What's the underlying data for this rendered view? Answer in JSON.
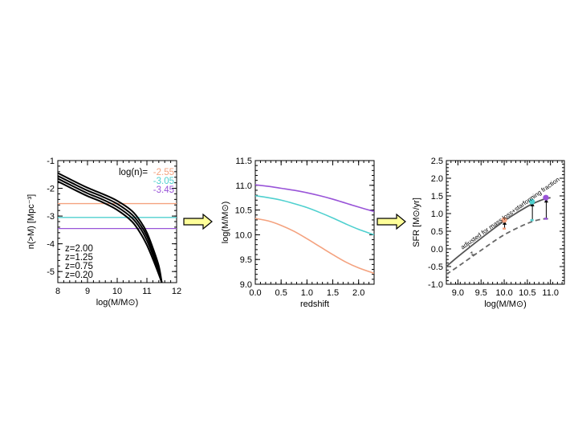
{
  "chart_data": [
    {
      "type": "line",
      "xlabel": "log(M/M⊙)",
      "ylabel": "n(>M) [Mpc⁻³]",
      "xlim": [
        8,
        12
      ],
      "ylim": [
        -5.4,
        -1
      ],
      "xticks": [
        "8",
        "9",
        "10",
        "11",
        "12"
      ],
      "yticks": [
        "-1",
        "-2",
        "-3",
        "-4",
        "-5"
      ],
      "legend_title": "log(n)=",
      "thresholds": [
        {
          "label": "-2.55",
          "value": -2.55,
          "color": "#f4a27f"
        },
        {
          "label": "-3.05",
          "value": -3.05,
          "color": "#4fd0cf"
        },
        {
          "label": "-3.45",
          "value": -3.45,
          "color": "#9954d8"
        }
      ],
      "series_labels": [
        "z=2.00",
        "z=1.25",
        "z=0.75",
        "z=0.20"
      ],
      "series": [
        {
          "name": "z=2.00",
          "x": [
            8.0,
            8.5,
            9.0,
            9.5,
            10.0,
            10.5,
            10.8,
            11.0,
            11.2,
            11.4,
            11.5
          ],
          "y": [
            -1.75,
            -2.02,
            -2.28,
            -2.5,
            -2.78,
            -3.2,
            -3.65,
            -4.05,
            -4.55,
            -5.1,
            -5.4
          ]
        },
        {
          "name": "z=1.25",
          "x": [
            8.0,
            8.5,
            9.0,
            9.5,
            10.0,
            10.5,
            10.8,
            11.0,
            11.2,
            11.4,
            11.5
          ],
          "y": [
            -1.65,
            -1.92,
            -2.18,
            -2.4,
            -2.67,
            -3.07,
            -3.48,
            -3.88,
            -4.4,
            -5.0,
            -5.4
          ]
        },
        {
          "name": "z=0.75",
          "x": [
            8.0,
            8.5,
            9.0,
            9.5,
            10.0,
            10.5,
            10.8,
            11.0,
            11.2,
            11.4,
            11.5
          ],
          "y": [
            -1.55,
            -1.82,
            -2.08,
            -2.3,
            -2.56,
            -2.95,
            -3.35,
            -3.73,
            -4.27,
            -4.9,
            -5.4
          ]
        },
        {
          "name": "z=0.20",
          "x": [
            8.0,
            8.5,
            9.0,
            9.5,
            10.0,
            10.5,
            10.8,
            11.0,
            11.2,
            11.4,
            11.5
          ],
          "y": [
            -1.45,
            -1.72,
            -1.98,
            -2.2,
            -2.45,
            -2.82,
            -3.22,
            -3.6,
            -4.15,
            -4.8,
            -5.4
          ]
        }
      ]
    },
    {
      "type": "line",
      "xlabel": "redshift",
      "ylabel": "log(M/M⊙)",
      "xlim": [
        0,
        2.3
      ],
      "ylim": [
        9,
        11.5
      ],
      "xticks": [
        "0.0",
        "0.5",
        "1.0",
        "1.5",
        "2.0"
      ],
      "yticks": [
        "9.0",
        "9.5",
        "10.0",
        "10.5",
        "11.0",
        "11.5"
      ],
      "series": [
        {
          "color": "#9954d8",
          "x": [
            0.0,
            0.25,
            0.5,
            0.75,
            1.0,
            1.25,
            1.5,
            1.75,
            2.0,
            2.3
          ],
          "y": [
            11.01,
            10.98,
            10.94,
            10.9,
            10.85,
            10.79,
            10.72,
            10.64,
            10.56,
            10.47
          ]
        },
        {
          "color": "#4fd0cf",
          "x": [
            0.0,
            0.25,
            0.5,
            0.75,
            1.0,
            1.25,
            1.5,
            1.75,
            2.0,
            2.3
          ],
          "y": [
            10.79,
            10.75,
            10.7,
            10.63,
            10.55,
            10.45,
            10.34,
            10.22,
            10.11,
            10.0
          ]
        },
        {
          "color": "#f4a27f",
          "x": [
            0.0,
            0.25,
            0.5,
            0.75,
            1.0,
            1.25,
            1.5,
            1.75,
            2.0,
            2.3
          ],
          "y": [
            10.33,
            10.28,
            10.19,
            10.07,
            9.92,
            9.76,
            9.6,
            9.45,
            9.33,
            9.22
          ]
        }
      ]
    },
    {
      "type": "line",
      "xlabel": "log(M/M⊙)",
      "ylabel": "SFR [M⊙/yr]",
      "xlim": [
        8.75,
        11.3
      ],
      "ylim": [
        -1.0,
        2.5
      ],
      "xticks": [
        "9.0",
        "9.5",
        "10.0",
        "10.5",
        "11.0"
      ],
      "yticks": [
        "-1.0",
        "-0.5",
        "0.0",
        "0.5",
        "1.0",
        "1.5",
        "2.0",
        "2.5"
      ],
      "annotation_main": "adjusted for mass loss+starforming fraction",
      "annotation_lower": "z",
      "series": [
        {
          "style": "solid",
          "x": [
            8.75,
            9.0,
            9.5,
            10.0,
            10.5,
            10.8,
            11.0
          ],
          "y": [
            -0.5,
            -0.22,
            0.3,
            0.79,
            1.2,
            1.38,
            1.45
          ]
        },
        {
          "style": "dashed",
          "x": [
            8.75,
            9.0,
            9.5,
            10.0,
            10.5,
            10.8,
            11.0
          ],
          "y": [
            -0.72,
            -0.5,
            -0.04,
            0.4,
            0.72,
            0.84,
            0.85
          ]
        }
      ],
      "points": [
        {
          "x": 10.0,
          "y_upper": 0.82,
          "y_lower": 0.58,
          "color": "#f4a27f"
        },
        {
          "x": 10.6,
          "y_upper": 1.34,
          "y_lower": 0.82,
          "color": "#4fd0cf"
        },
        {
          "x": 10.9,
          "y_upper": 1.45,
          "y_lower": 0.86,
          "color": "#9954d8"
        }
      ]
    }
  ],
  "arrows": {
    "fill": "#ffff99",
    "stroke": "#000000"
  }
}
